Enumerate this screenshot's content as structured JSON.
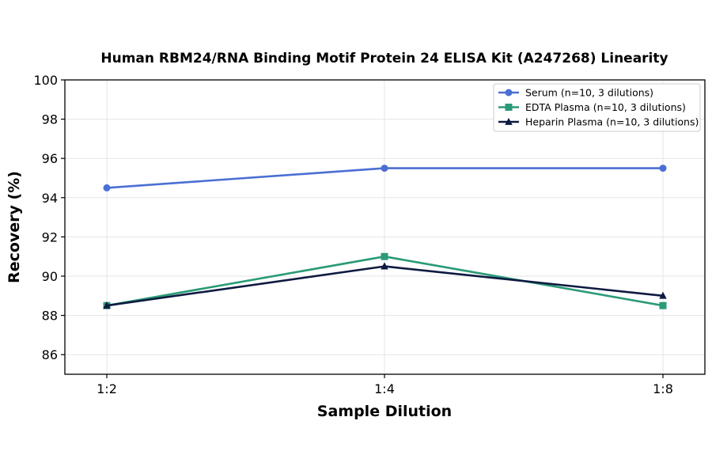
{
  "chart_data": {
    "type": "line",
    "title": "Human RBM24/RNA Binding Motif Protein 24 ELISA Kit (A247268) Linearity",
    "xlabel": "Sample Dilution",
    "ylabel": "Recovery (%)",
    "categories": [
      "1:2",
      "1:4",
      "1:8"
    ],
    "ylim": [
      85,
      100
    ],
    "yticks": [
      86,
      88,
      90,
      92,
      94,
      96,
      98,
      100
    ],
    "grid": true,
    "legend_position": "top-right",
    "series": [
      {
        "name": "Serum (n=10, 3 dilutions)",
        "values": [
          94.5,
          95.5,
          95.5
        ],
        "color": "#4a6fd4",
        "marker": "circle"
      },
      {
        "name": "EDTA Plasma (n=10, 3 dilutions)",
        "values": [
          88.5,
          91.0,
          88.5
        ],
        "color": "#2a9a78",
        "marker": "square"
      },
      {
        "name": "Heparin Plasma (n=10, 3 dilutions)",
        "values": [
          88.5,
          90.5,
          89.0
        ],
        "color": "#0e1a40",
        "marker": "triangle"
      }
    ]
  }
}
